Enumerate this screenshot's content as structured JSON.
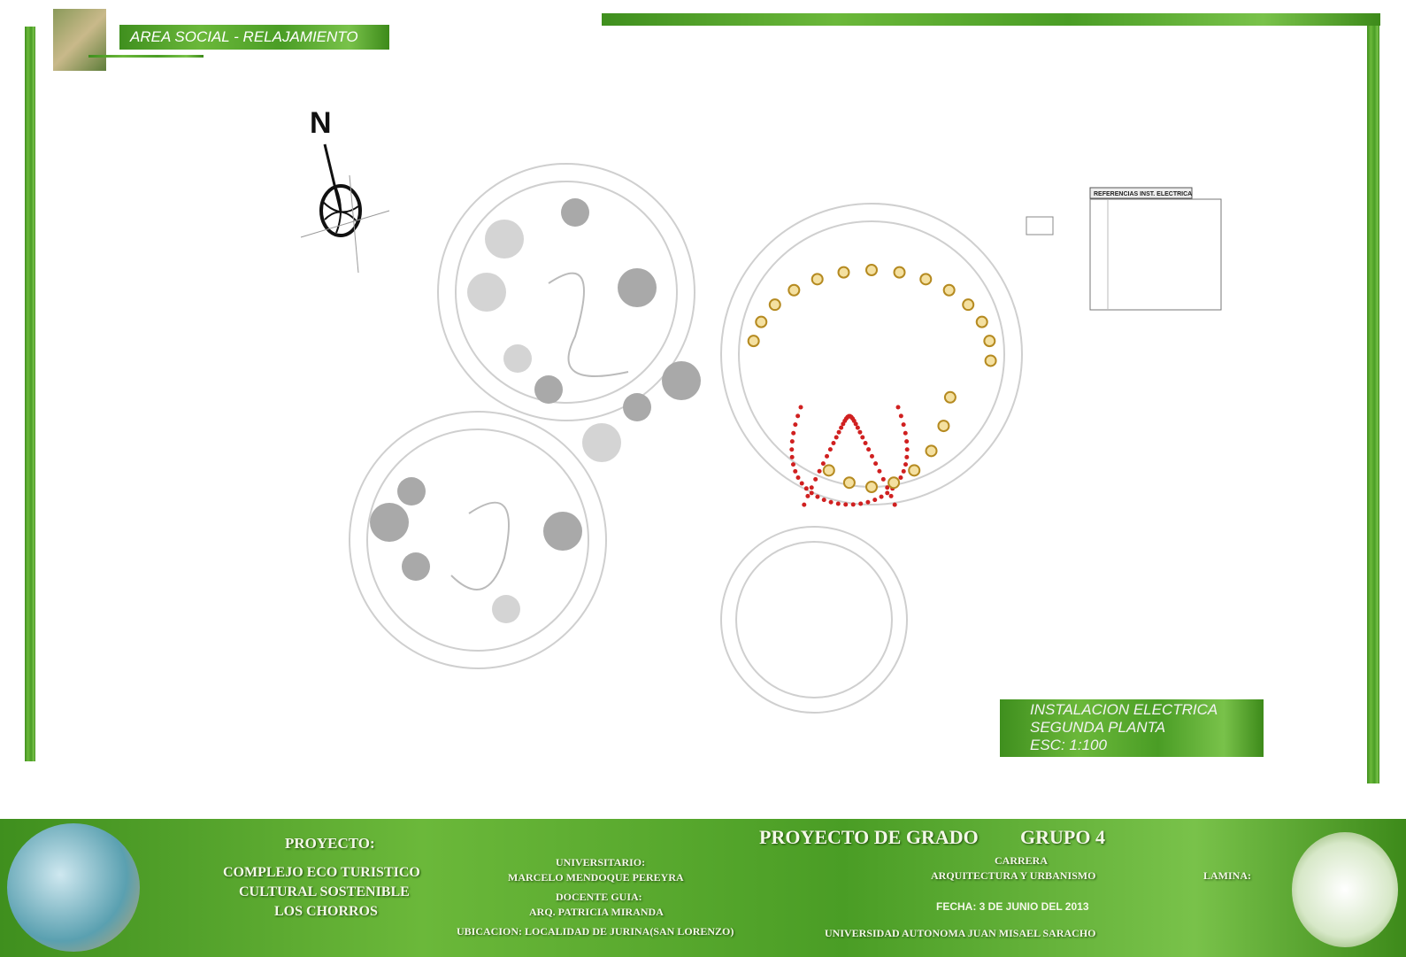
{
  "header": {
    "title": "AREA SOCIAL - RELAJAMIENTO"
  },
  "plan": {
    "north": "N",
    "legend_title": "REFERENCIAS INST. ELECTRICA"
  },
  "sheet_label": {
    "line1": "INSTALACION ELECTRICA",
    "line2": "SEGUNDA PLANTA",
    "scale": "ESC: 1:100"
  },
  "footer": {
    "project_label": "PROYECTO:",
    "project_name": [
      "COMPLEJO ECO TURISTICO",
      "CULTURAL SOSTENIBLE",
      "LOS CHORROS"
    ],
    "student_label": "UNIVERSITARIO:",
    "student": "MARCELO MENDOQUE PEREYRA",
    "advisor_label": "DOCENTE GUIA:",
    "advisor": "ARQ. PATRICIA MIRANDA",
    "location": "UBICACION: LOCALIDAD DE JURINA(SAN LORENZO)",
    "grade": "PROYECTO DE GRADO",
    "group": "GRUPO 4",
    "career_label": "CARRERA",
    "career": "ARQUITECTURA Y URBANISMO",
    "date": "FECHA: 3 DE JUNIO DEL 2013",
    "university": "UNIVERSIDAD AUTONOMA JUAN MISAEL SARACHO",
    "sheet_label": "LAMINA:"
  }
}
